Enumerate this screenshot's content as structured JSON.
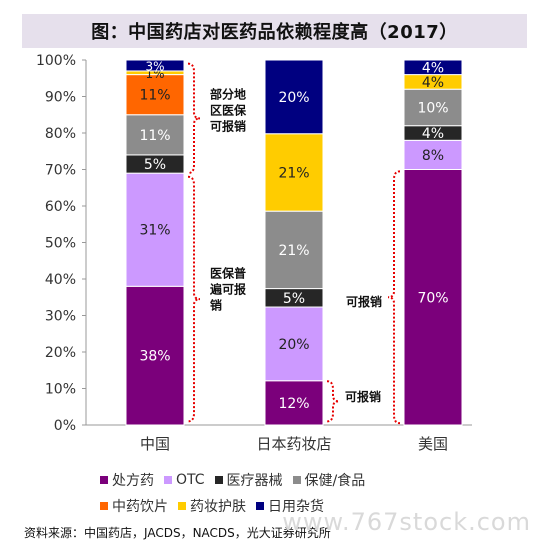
{
  "title": "图：中国药店对医药品依赖程度高（2017）",
  "source": "资料来源：中国药店，JACDS，NACDS，光大证券研究所",
  "watermark": "www.767stock.com",
  "colors": {
    "处方药": "#7b007b",
    "OTC": "#cc99ff",
    "医疗器械": "#262626",
    "保健/食品": "#8c8c8c",
    "中药饮片": "#ff6600",
    "药妆护肤": "#ffcc00",
    "日用杂货": "#000080"
  },
  "annotations": {
    "china_top": [
      "部分地",
      "区医保",
      "可报销"
    ],
    "china_bottom": [
      "医保普",
      "遍可报",
      "销"
    ],
    "japan_mid": "可报销",
    "japan_low": "可报销"
  },
  "chart_data": {
    "type": "bar",
    "stacked": true,
    "percent": true,
    "categories": [
      "中国",
      "日本药妆店",
      "美国"
    ],
    "ylim": [
      0,
      100
    ],
    "yticks": [
      "0%",
      "10%",
      "20%",
      "30%",
      "40%",
      "50%",
      "60%",
      "70%",
      "80%",
      "90%",
      "100%"
    ],
    "series": [
      {
        "name": "处方药",
        "values": [
          38,
          0,
          70
        ]
      },
      {
        "name": "OTC",
        "values": [
          31,
          20,
          8
        ]
      },
      {
        "name": "医疗器械",
        "values": [
          5,
          5,
          4
        ]
      },
      {
        "name": "保健/食品",
        "values": [
          11,
          21,
          10
        ]
      },
      {
        "name": "中药饮片",
        "values": [
          11,
          0,
          0
        ]
      },
      {
        "name": "药妆护肤",
        "values": [
          1,
          21,
          4
        ]
      },
      {
        "name": "日用杂货",
        "values": [
          3,
          20,
          4
        ]
      }
    ],
    "extra_segments": [
      {
        "category": "日本药妆店",
        "value": 12,
        "label": "12%",
        "series": "处方药"
      }
    ]
  }
}
